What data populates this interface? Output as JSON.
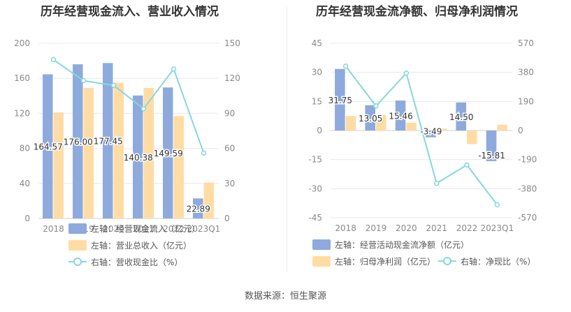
{
  "titles": {
    "left": "历年经营现金流入、营业收入情况",
    "right": "历年经营现金流净额、归母净利润情况"
  },
  "source": "数据来源：恒生聚源",
  "chart_data": [
    {
      "type": "bar",
      "title": "历年经营现金流入、营业收入情况",
      "categories": [
        "2018",
        "2019",
        "2020",
        "2021",
        "2022",
        "2023Q1"
      ],
      "ylim_left": [
        0,
        200
      ],
      "yticks_left": [
        0,
        40,
        80,
        120,
        160,
        200
      ],
      "ylim_right": [
        0,
        150
      ],
      "yticks_right": [
        0,
        30,
        60,
        90,
        120,
        150
      ],
      "grid": true,
      "legend_position": "bottom-left",
      "series": [
        {
          "name": "左轴：经营现金流入（亿元）",
          "type": "bar",
          "axis": "left",
          "color": "#8eaadc",
          "values": [
            164.57,
            176.0,
            177.45,
            140.38,
            149.59,
            22.89
          ],
          "labels": [
            "164.57",
            "176.00",
            "177.45",
            "140.38",
            "149.59",
            "22.89"
          ]
        },
        {
          "name": "左轴：营业总收入（亿元）",
          "type": "bar",
          "axis": "left",
          "color": "#ffdca4",
          "values": [
            121,
            149,
            155,
            149,
            117,
            41
          ]
        },
        {
          "name": "右轴：营收现金比（%）",
          "type": "line",
          "axis": "right",
          "color": "#86d8dc",
          "values": [
            136,
            118,
            114,
            94,
            128,
            56
          ]
        }
      ]
    },
    {
      "type": "bar",
      "title": "历年经营现金流净额、归母净利润情况",
      "categories": [
        "2018",
        "2019",
        "2020",
        "2021",
        "2022",
        "2023Q1"
      ],
      "ylim_left": [
        -45,
        45
      ],
      "yticks_left": [
        -45,
        -30,
        -15,
        0,
        15,
        30,
        45
      ],
      "ylim_right": [
        -570,
        570
      ],
      "yticks_right": [
        -570,
        -380,
        -190,
        0,
        190,
        380,
        570
      ],
      "grid": true,
      "legend_position": "bottom-left",
      "series": [
        {
          "name": "左轴：经营活动现金流净额（亿元）",
          "type": "bar",
          "axis": "left",
          "color": "#8eaadc",
          "values": [
            31.75,
            13.05,
            15.46,
            -3.49,
            14.5,
            -15.81
          ],
          "labels": [
            "31.75",
            "13.05",
            "15.46",
            "-3.49",
            "14.50",
            "-15.81"
          ]
        },
        {
          "name": "左轴：归母净利润（亿元）",
          "type": "bar",
          "axis": "left",
          "color": "#ffdca4",
          "values": [
            7.5,
            8.0,
            4.0,
            1.0,
            -7.0,
            3.0
          ]
        },
        {
          "name": "右轴：净现比（%）",
          "type": "line",
          "axis": "right",
          "color": "#86d8dc",
          "values": [
            420,
            160,
            375,
            -345,
            -225,
            -485
          ]
        }
      ]
    }
  ]
}
